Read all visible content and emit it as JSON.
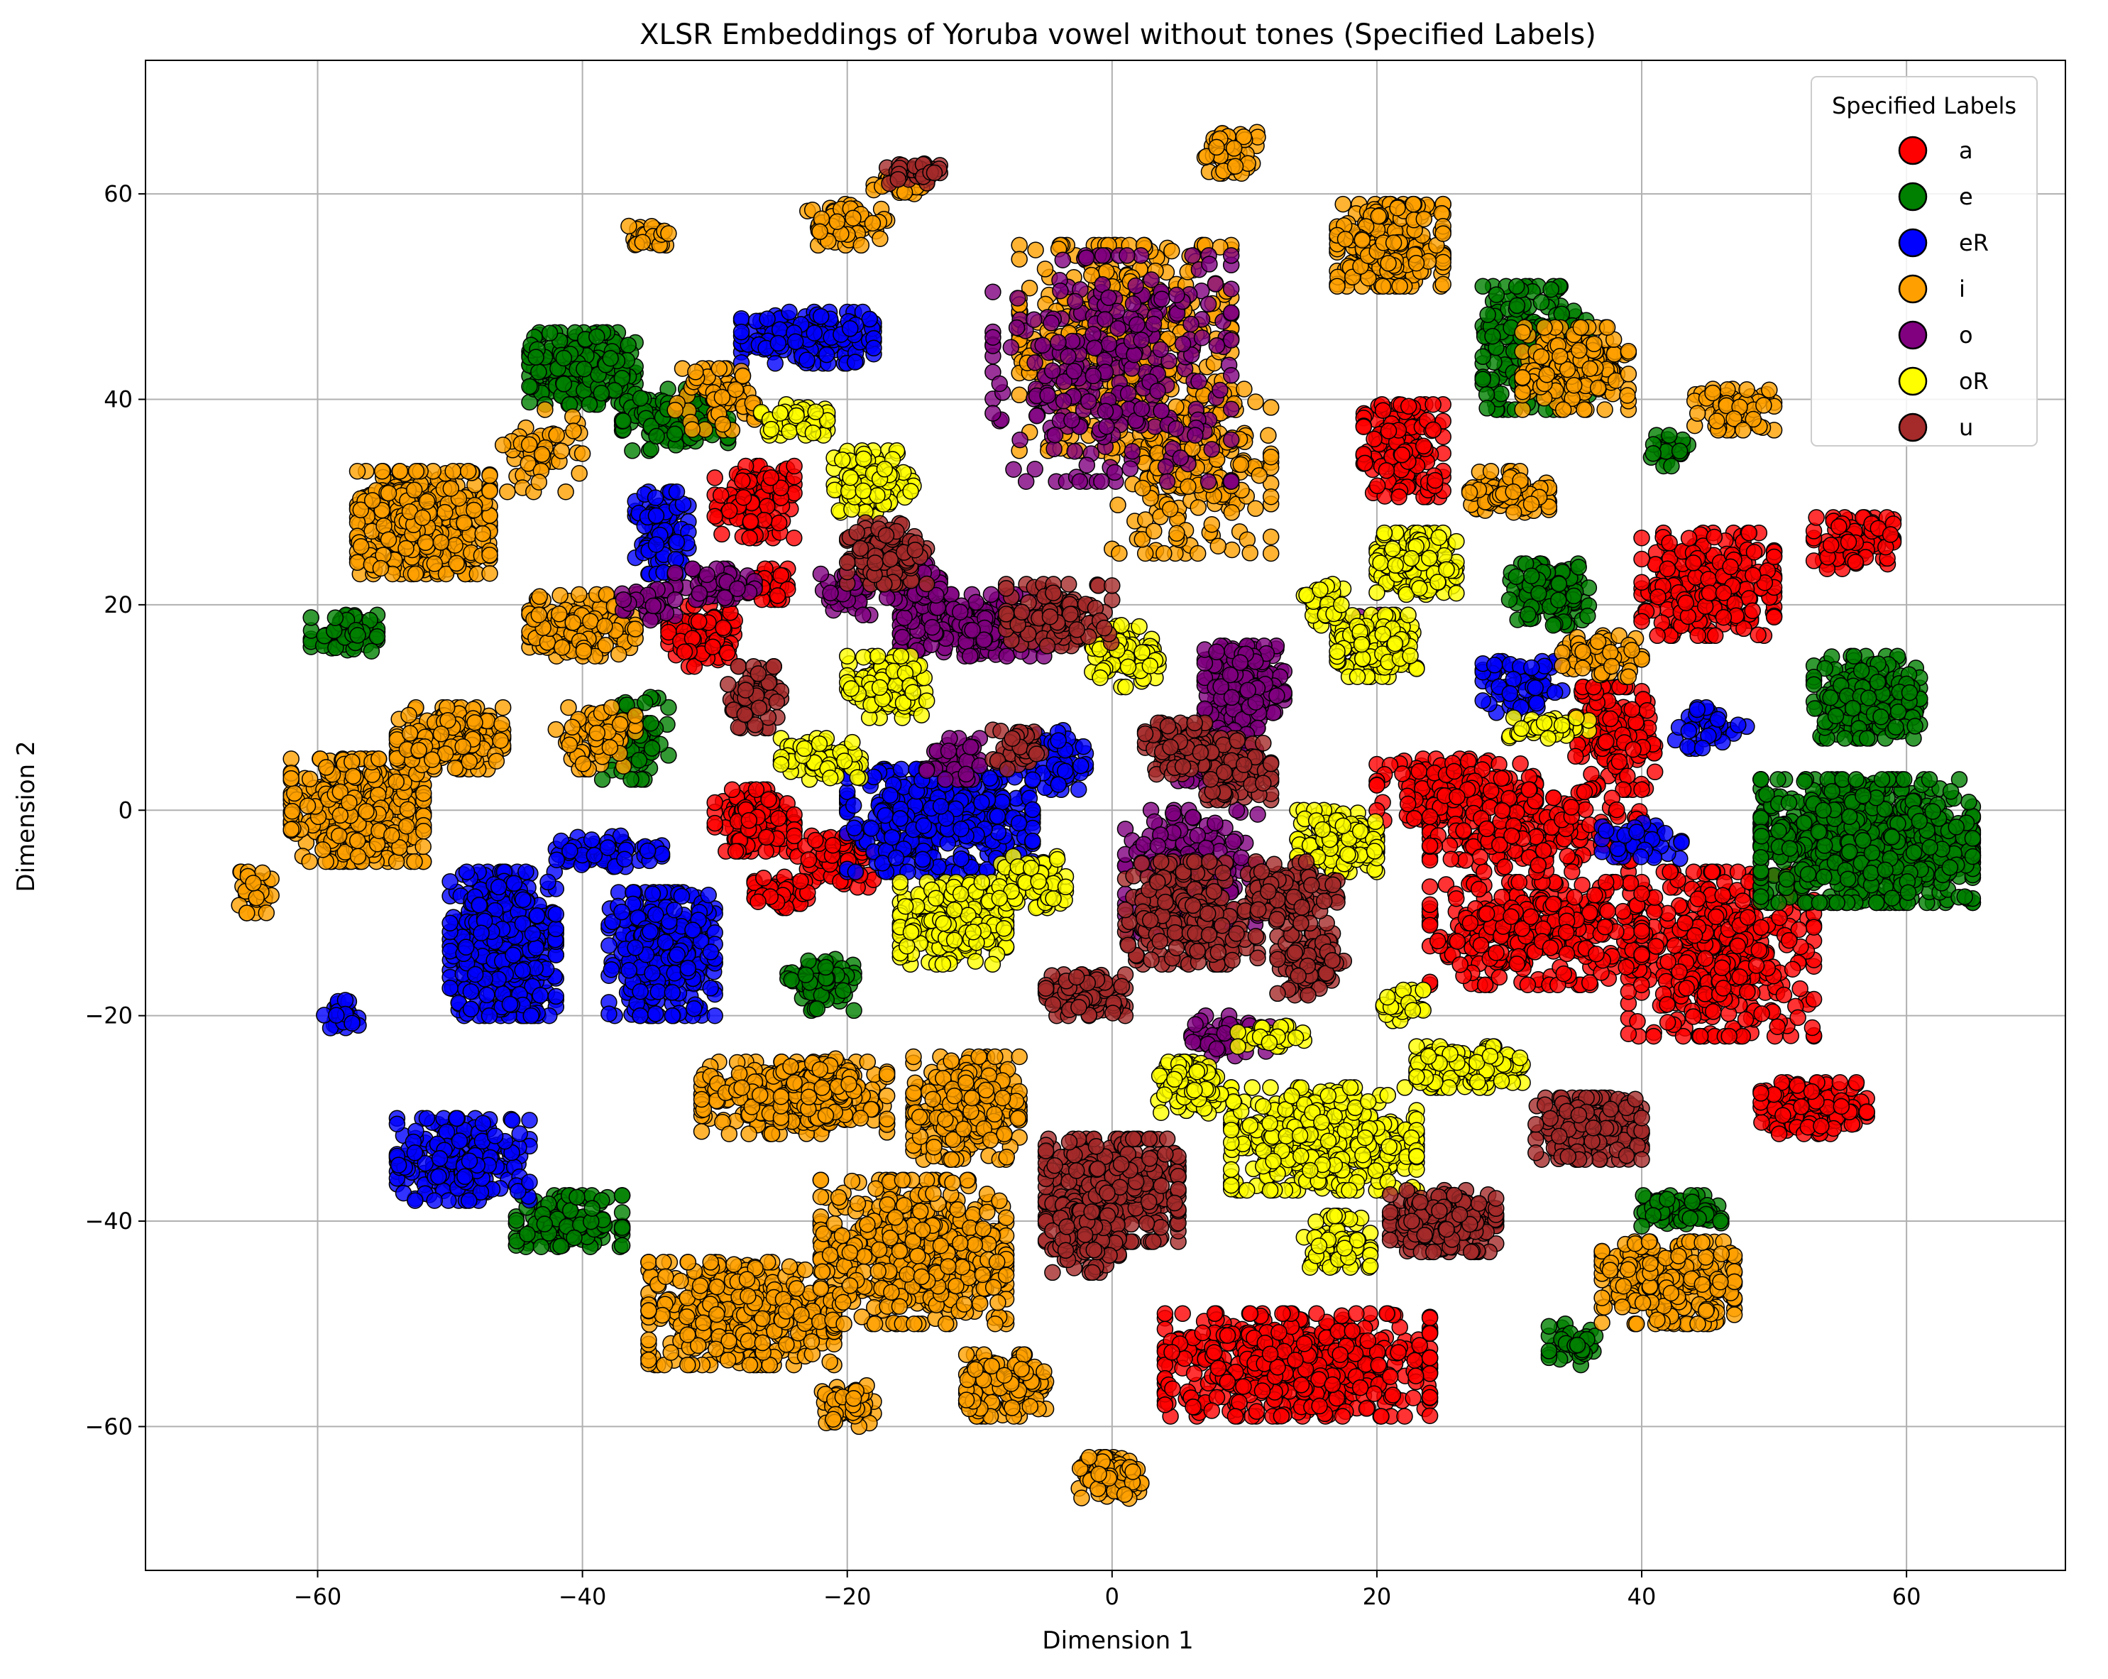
{
  "chart_data": {
    "type": "scatter",
    "title": "XLSR Embeddings of Yoruba vowel without tones (Specified Labels)",
    "xlabel": "Dimension 1",
    "ylabel": "Dimension 2",
    "xlim": [
      -73,
      72
    ],
    "ylim": [
      -74,
      73
    ],
    "xticks": [
      -60,
      -40,
      -20,
      0,
      20,
      40,
      60
    ],
    "yticks": [
      -60,
      -40,
      -20,
      0,
      20,
      40,
      60
    ],
    "grid": true,
    "legend": {
      "title": "Specified Labels",
      "position": "top-right"
    },
    "series": [
      {
        "name": "a",
        "color": "#ff0000",
        "clusters": [
          [
            22,
            35,
            3,
            4.5,
            160
          ],
          [
            45,
            22,
            5,
            5,
            260
          ],
          [
            56,
            26,
            3,
            2.5,
            110
          ],
          [
            38,
            7,
            3,
            5,
            140
          ],
          [
            46,
            -14,
            7,
            8,
            420
          ],
          [
            32,
            -12,
            8,
            5,
            320
          ],
          [
            26,
            2,
            6,
            3,
            160
          ],
          [
            53,
            -29,
            4,
            2.5,
            140
          ],
          [
            14,
            -54,
            10,
            5,
            520
          ],
          [
            -31,
            17,
            2.5,
            3,
            90
          ],
          [
            -27,
            30,
            3,
            3.5,
            110
          ],
          [
            -27,
            -1,
            3,
            3,
            120
          ],
          [
            -21,
            -5,
            3,
            2.5,
            70
          ],
          [
            -25,
            -8,
            2,
            1.5,
            50
          ],
          [
            -26,
            22,
            1.5,
            1.5,
            40
          ],
          [
            32,
            -2,
            8,
            4,
            180
          ]
        ]
      },
      {
        "name": "e",
        "color": "#008000",
        "clusters": [
          [
            -40,
            43,
            4,
            3.5,
            240
          ],
          [
            -33,
            38,
            4,
            3,
            140
          ],
          [
            -58,
            17,
            2.5,
            2,
            60
          ],
          [
            57,
            -3,
            8,
            6,
            820
          ],
          [
            57,
            11,
            4,
            4,
            220
          ],
          [
            32,
            45,
            4,
            6,
            220
          ],
          [
            33,
            21,
            3,
            3,
            130
          ],
          [
            -41,
            -40,
            4,
            2.5,
            130
          ],
          [
            -36,
            7,
            2.5,
            4,
            70
          ],
          [
            -22,
            -17,
            2.5,
            2.5,
            70
          ],
          [
            43,
            -39,
            3,
            1.5,
            70
          ],
          [
            35,
            -52,
            2,
            2,
            40
          ],
          [
            42,
            35,
            1.5,
            1.5,
            30
          ]
        ]
      },
      {
        "name": "eR",
        "color": "#0000ff",
        "clusters": [
          [
            -23,
            46,
            5,
            2.5,
            160
          ],
          [
            -34,
            27,
            2,
            4,
            80
          ],
          [
            -46,
            -13,
            4,
            7,
            420
          ],
          [
            -34,
            -14,
            4,
            6,
            320
          ],
          [
            -49,
            -34,
            5,
            4,
            220
          ],
          [
            -13,
            -1,
            7,
            5,
            420
          ],
          [
            -4,
            5,
            2,
            3,
            50
          ],
          [
            -38,
            -4,
            4,
            1.5,
            70
          ],
          [
            -58,
            -20,
            1.5,
            1.5,
            25
          ],
          [
            31,
            12,
            3,
            2.5,
            70
          ],
          [
            45,
            8,
            3,
            2,
            40
          ],
          [
            40,
            -3,
            3,
            2,
            40
          ]
        ]
      },
      {
        "name": "i",
        "color": "#ffa000",
        "clusters": [
          [
            -52,
            28,
            5,
            5,
            420
          ],
          [
            -57,
            0,
            5,
            5,
            420
          ],
          [
            -50,
            7,
            4,
            3,
            140
          ],
          [
            -40,
            18,
            4,
            3,
            160
          ],
          [
            -24,
            -28,
            7,
            3.5,
            280
          ],
          [
            -11,
            -29,
            4,
            5,
            260
          ],
          [
            -28,
            -49,
            7,
            5,
            420
          ],
          [
            -15,
            -43,
            7,
            7,
            500
          ],
          [
            -8,
            -56,
            3,
            3,
            140
          ],
          [
            0,
            -65,
            2.5,
            2,
            90
          ],
          [
            -20,
            -58,
            2,
            2,
            60
          ],
          [
            21,
            55,
            4,
            4,
            260
          ],
          [
            35,
            43,
            4,
            4,
            200
          ],
          [
            42,
            -46,
            5,
            4,
            260
          ],
          [
            -20,
            57,
            3,
            2,
            60
          ],
          [
            9,
            64,
            2,
            2,
            50
          ],
          [
            30,
            31,
            3,
            2,
            90
          ],
          [
            37,
            15,
            3,
            2,
            70
          ],
          [
            -35,
            56,
            1.5,
            1,
            30
          ],
          [
            -16,
            61,
            2,
            1,
            30
          ],
          [
            -39,
            7,
            3,
            3,
            70
          ],
          [
            -30,
            40,
            3,
            3,
            70
          ],
          [
            -65,
            -8,
            1.5,
            2,
            30
          ],
          [
            -43,
            35,
            3,
            4,
            50
          ],
          [
            47,
            39,
            3,
            2,
            70
          ],
          [
            -22,
            -27,
            3,
            3,
            90
          ],
          [
            1,
            45,
            8,
            10,
            420
          ],
          [
            6,
            33,
            6,
            8,
            220
          ]
        ]
      },
      {
        "name": "o",
        "color": "#800080",
        "clusters": [
          [
            10,
            12,
            3,
            4,
            200
          ],
          [
            6,
            -6,
            5,
            6,
            200
          ],
          [
            -10,
            18,
            6,
            3,
            260
          ],
          [
            0,
            43,
            9,
            11,
            300
          ],
          [
            -30,
            22,
            3,
            1.5,
            60
          ],
          [
            -20,
            21,
            2,
            2,
            40
          ],
          [
            -35,
            20,
            2,
            1.5,
            30
          ],
          [
            20,
            17,
            2,
            2,
            40
          ],
          [
            -12,
            5,
            2,
            2,
            40
          ],
          [
            -15,
            22,
            2,
            2,
            40
          ],
          [
            9,
            -22,
            3,
            2,
            50
          ],
          [
            8,
            5,
            3,
            3,
            80
          ]
        ]
      },
      {
        "name": "oR",
        "color": "#ffff00",
        "clusters": [
          [
            23,
            24,
            3,
            3,
            160
          ],
          [
            20,
            16,
            3,
            3,
            140
          ],
          [
            -12,
            -11,
            4,
            4,
            220
          ],
          [
            16,
            -32,
            7,
            5,
            420
          ],
          [
            17,
            -3,
            3,
            3,
            140
          ],
          [
            -17,
            12,
            3,
            3,
            120
          ],
          [
            -22,
            5,
            3,
            2,
            70
          ],
          [
            -18,
            32,
            3,
            3,
            120
          ],
          [
            -24,
            38,
            2.5,
            1.5,
            60
          ],
          [
            1,
            15,
            2.5,
            3,
            80
          ],
          [
            27,
            -25,
            4,
            2,
            140
          ],
          [
            6,
            -27,
            2.5,
            2.5,
            110
          ],
          [
            -6,
            -7,
            2.5,
            2.5,
            70
          ],
          [
            17,
            -42,
            2.5,
            2.5,
            70
          ],
          [
            22,
            -19,
            1.5,
            1.5,
            30
          ],
          [
            33,
            8,
            3,
            1,
            40
          ],
          [
            12,
            -22,
            2.5,
            1,
            40
          ],
          [
            16,
            20,
            1.5,
            2,
            40
          ]
        ]
      },
      {
        "name": "u",
        "color": "#a52a2a",
        "clusters": [
          [
            0,
            -37,
            5,
            5,
            420
          ],
          [
            6,
            -10,
            5,
            5,
            220
          ],
          [
            25,
            -40,
            4,
            3,
            220
          ],
          [
            36,
            -31,
            4,
            3,
            200
          ],
          [
            -17,
            25,
            3,
            3,
            120
          ],
          [
            -4,
            19,
            4,
            3,
            120
          ],
          [
            -2,
            -18,
            3,
            2,
            120
          ],
          [
            -27,
            11,
            2,
            3,
            70
          ],
          [
            -2,
            -42,
            2.5,
            3,
            90
          ],
          [
            15,
            -15,
            2.5,
            3,
            90
          ],
          [
            -15,
            62,
            2,
            1,
            40
          ],
          [
            9,
            4,
            3,
            3,
            100
          ],
          [
            14,
            -8,
            3,
            3,
            100
          ],
          [
            5,
            6,
            2.5,
            2.5,
            80
          ],
          [
            -7,
            6,
            2,
            2,
            40
          ]
        ]
      }
    ]
  }
}
